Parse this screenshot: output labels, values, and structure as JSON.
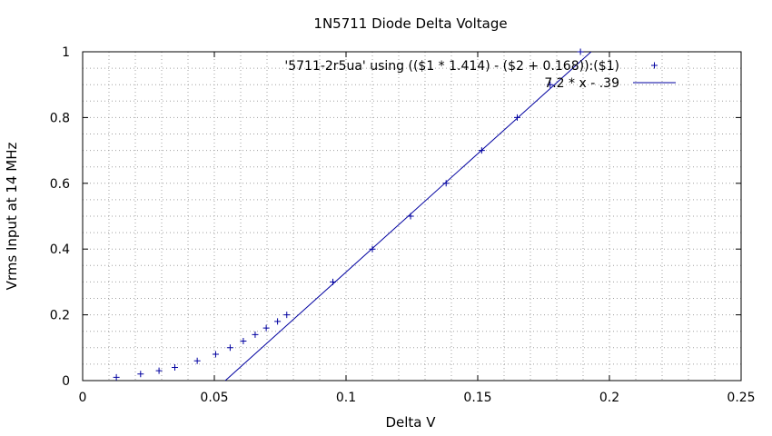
{
  "chart_data": {
    "type": "scatter",
    "title": "1N5711 Diode Delta Voltage",
    "xlabel": "Delta V",
    "ylabel": "Vrms Input at 14 MHz",
    "xlim": [
      0,
      0.25
    ],
    "ylim": [
      0,
      1
    ],
    "grid": true,
    "legend_position": "top-right",
    "x_ticks": [
      "0",
      "0.05",
      "0.1",
      "0.15",
      "0.2",
      "0.25"
    ],
    "y_ticks": [
      "0",
      "0.2",
      "0.4",
      "0.6",
      "0.8",
      "1"
    ],
    "series": [
      {
        "name": "'5711-2r5ua' using (($1 * 1.414) - ($2 + 0.168)):($1)",
        "type": "scatter",
        "marker": "+",
        "color": "#0000a0",
        "points": [
          [
            0.0128,
            0.01
          ],
          [
            0.022,
            0.02
          ],
          [
            0.029,
            0.03
          ],
          [
            0.035,
            0.04
          ],
          [
            0.0435,
            0.06
          ],
          [
            0.0505,
            0.08
          ],
          [
            0.056,
            0.1
          ],
          [
            0.061,
            0.12
          ],
          [
            0.0655,
            0.14
          ],
          [
            0.0697,
            0.16
          ],
          [
            0.074,
            0.18
          ],
          [
            0.0775,
            0.2
          ],
          [
            0.095,
            0.3
          ],
          [
            0.11,
            0.4
          ],
          [
            0.1245,
            0.5
          ],
          [
            0.138,
            0.6
          ],
          [
            0.1515,
            0.7
          ],
          [
            0.165,
            0.8
          ],
          [
            0.1775,
            0.9
          ],
          [
            0.189,
            1.0
          ]
        ]
      },
      {
        "name": "7.2 * x - .39",
        "type": "line",
        "color": "#0000a0",
        "slope": 7.2,
        "intercept": -0.39
      }
    ]
  }
}
